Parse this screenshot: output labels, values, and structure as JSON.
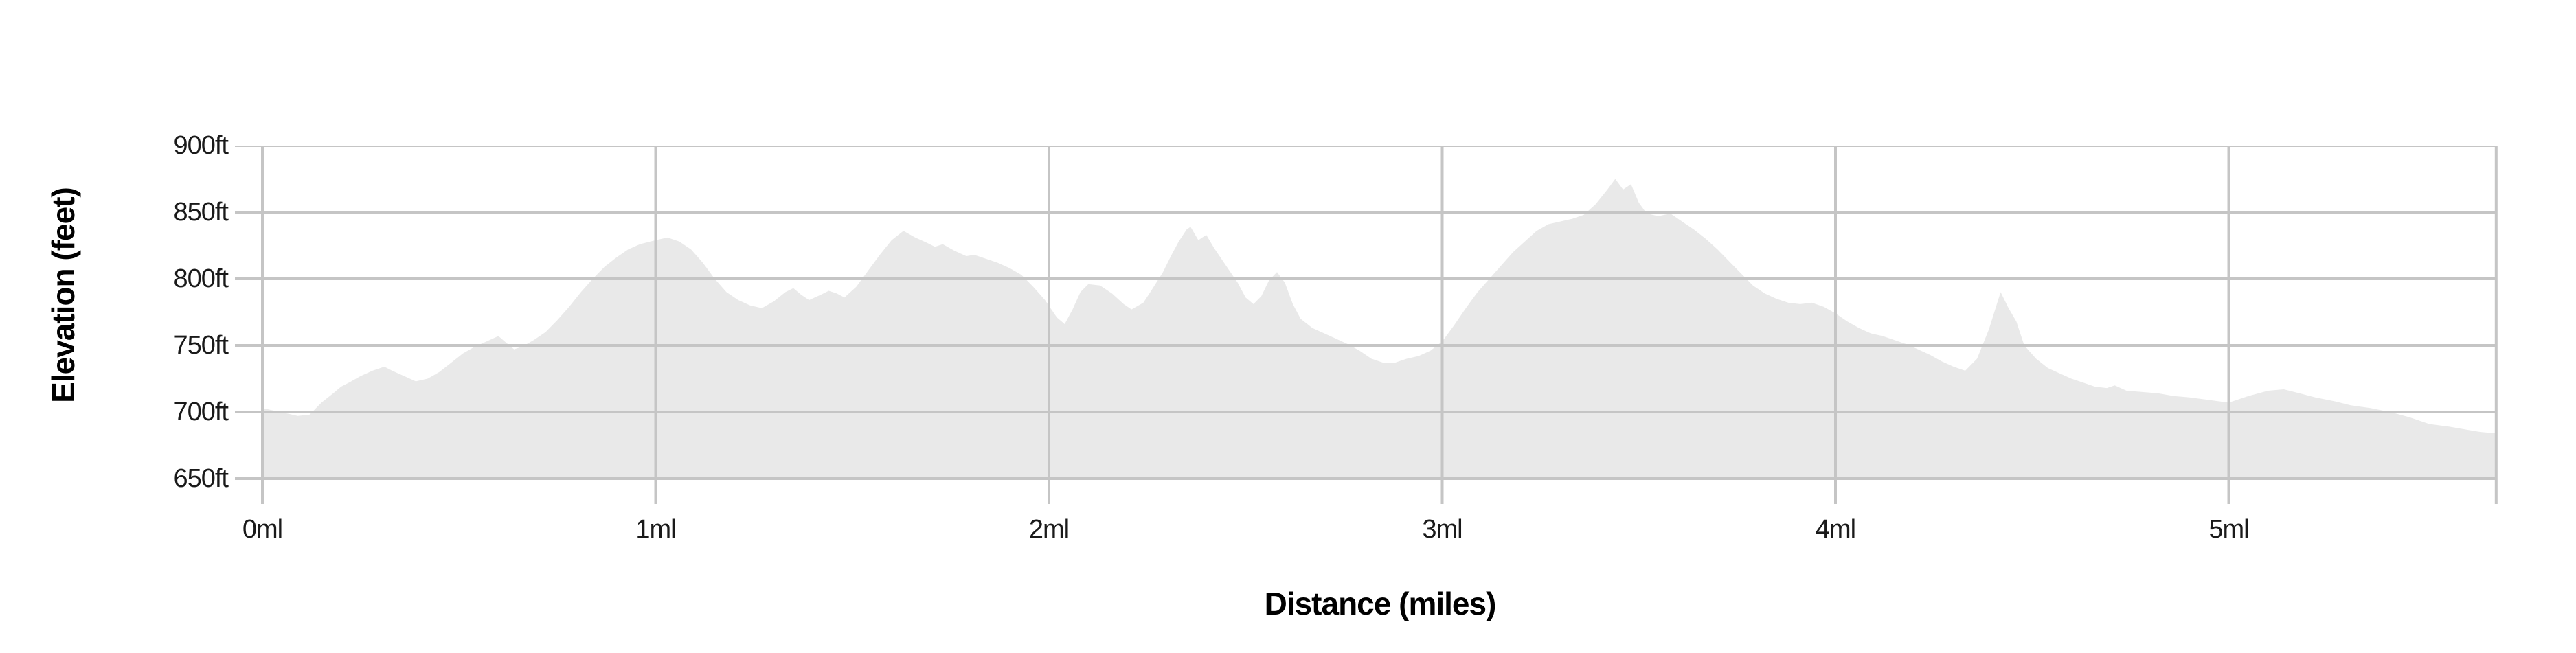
{
  "chart_data": {
    "type": "area",
    "title": "",
    "x_axis": {
      "label": "Distance (miles)",
      "max": 5.68,
      "ticks": [
        {
          "value": 0,
          "label": "0ml"
        },
        {
          "value": 1,
          "label": "1ml"
        },
        {
          "value": 2,
          "label": "2ml"
        },
        {
          "value": 3,
          "label": "3ml"
        },
        {
          "value": 4,
          "label": "4ml"
        },
        {
          "value": 5,
          "label": "5ml"
        }
      ]
    },
    "y_axis": {
      "label": "Elevation (feet)",
      "min": 650,
      "max": 900,
      "ticks": [
        {
          "value": 900,
          "label": "900ft"
        },
        {
          "value": 850,
          "label": "850ft"
        },
        {
          "value": 800,
          "label": "800ft"
        },
        {
          "value": 750,
          "label": "750ft"
        },
        {
          "value": 700,
          "label": "700ft"
        },
        {
          "value": 650,
          "label": "650ft"
        }
      ]
    },
    "colors": {
      "fill": "#e9e9e9",
      "grid": "#c5c5c5",
      "tick_text": "#1a1a1a",
      "title_text": "#000000",
      "background": "#ffffff"
    },
    "grid": true,
    "legend": "none",
    "series": [
      {
        "name": "elevation-profile",
        "points": [
          [
            0.0,
            703
          ],
          [
            0.03,
            701
          ],
          [
            0.06,
            699
          ],
          [
            0.09,
            697
          ],
          [
            0.12,
            698
          ],
          [
            0.15,
            707
          ],
          [
            0.18,
            714
          ],
          [
            0.2,
            719
          ],
          [
            0.22,
            722
          ],
          [
            0.25,
            727
          ],
          [
            0.28,
            731
          ],
          [
            0.31,
            734
          ],
          [
            0.33,
            731
          ],
          [
            0.36,
            727
          ],
          [
            0.39,
            723
          ],
          [
            0.42,
            725
          ],
          [
            0.45,
            730
          ],
          [
            0.48,
            737
          ],
          [
            0.51,
            744
          ],
          [
            0.54,
            749
          ],
          [
            0.57,
            753
          ],
          [
            0.6,
            757
          ],
          [
            0.62,
            752
          ],
          [
            0.64,
            747
          ],
          [
            0.66,
            749
          ],
          [
            0.69,
            754
          ],
          [
            0.72,
            760
          ],
          [
            0.75,
            769
          ],
          [
            0.78,
            779
          ],
          [
            0.81,
            790
          ],
          [
            0.84,
            800
          ],
          [
            0.87,
            809
          ],
          [
            0.9,
            816
          ],
          [
            0.93,
            822
          ],
          [
            0.96,
            826
          ],
          [
            1.0,
            829
          ],
          [
            1.03,
            831
          ],
          [
            1.06,
            828
          ],
          [
            1.09,
            822
          ],
          [
            1.12,
            812
          ],
          [
            1.15,
            800
          ],
          [
            1.18,
            790
          ],
          [
            1.21,
            784
          ],
          [
            1.24,
            780
          ],
          [
            1.27,
            778
          ],
          [
            1.3,
            783
          ],
          [
            1.33,
            790
          ],
          [
            1.35,
            793
          ],
          [
            1.37,
            788
          ],
          [
            1.39,
            784
          ],
          [
            1.42,
            788
          ],
          [
            1.44,
            791
          ],
          [
            1.46,
            789
          ],
          [
            1.48,
            786
          ],
          [
            1.51,
            794
          ],
          [
            1.54,
            806
          ],
          [
            1.57,
            818
          ],
          [
            1.6,
            829
          ],
          [
            1.63,
            836
          ],
          [
            1.66,
            831
          ],
          [
            1.69,
            827
          ],
          [
            1.71,
            824
          ],
          [
            1.73,
            826
          ],
          [
            1.76,
            821
          ],
          [
            1.79,
            817
          ],
          [
            1.81,
            818
          ],
          [
            1.84,
            815
          ],
          [
            1.87,
            812
          ],
          [
            1.9,
            808
          ],
          [
            1.93,
            803
          ],
          [
            1.96,
            794
          ],
          [
            1.99,
            784
          ],
          [
            2.02,
            771
          ],
          [
            2.04,
            766
          ],
          [
            2.06,
            777
          ],
          [
            2.08,
            790
          ],
          [
            2.1,
            796
          ],
          [
            2.13,
            795
          ],
          [
            2.16,
            789
          ],
          [
            2.19,
            781
          ],
          [
            2.21,
            777
          ],
          [
            2.24,
            782
          ],
          [
            2.26,
            791
          ],
          [
            2.29,
            805
          ],
          [
            2.31,
            817
          ],
          [
            2.33,
            828
          ],
          [
            2.35,
            837
          ],
          [
            2.36,
            839
          ],
          [
            2.38,
            829
          ],
          [
            2.4,
            833
          ],
          [
            2.42,
            823
          ],
          [
            2.45,
            810
          ],
          [
            2.48,
            797
          ],
          [
            2.5,
            786
          ],
          [
            2.52,
            781
          ],
          [
            2.54,
            787
          ],
          [
            2.56,
            799
          ],
          [
            2.58,
            805
          ],
          [
            2.6,
            797
          ],
          [
            2.62,
            781
          ],
          [
            2.64,
            770
          ],
          [
            2.67,
            763
          ],
          [
            2.7,
            759
          ],
          [
            2.73,
            755
          ],
          [
            2.76,
            751
          ],
          [
            2.79,
            746
          ],
          [
            2.82,
            740
          ],
          [
            2.85,
            737
          ],
          [
            2.88,
            737
          ],
          [
            2.91,
            740
          ],
          [
            2.94,
            742
          ],
          [
            2.97,
            746
          ],
          [
            3.0,
            753
          ],
          [
            3.03,
            765
          ],
          [
            3.06,
            778
          ],
          [
            3.09,
            790
          ],
          [
            3.12,
            800
          ],
          [
            3.15,
            810
          ],
          [
            3.18,
            820
          ],
          [
            3.21,
            828
          ],
          [
            3.24,
            836
          ],
          [
            3.27,
            841
          ],
          [
            3.3,
            843
          ],
          [
            3.33,
            845
          ],
          [
            3.36,
            848
          ],
          [
            3.39,
            856
          ],
          [
            3.42,
            867
          ],
          [
            3.44,
            875
          ],
          [
            3.46,
            867
          ],
          [
            3.48,
            871
          ],
          [
            3.5,
            857
          ],
          [
            3.52,
            849
          ],
          [
            3.55,
            847
          ],
          [
            3.58,
            849
          ],
          [
            3.61,
            843
          ],
          [
            3.64,
            837
          ],
          [
            3.67,
            830
          ],
          [
            3.7,
            822
          ],
          [
            3.73,
            813
          ],
          [
            3.76,
            804
          ],
          [
            3.79,
            795
          ],
          [
            3.82,
            789
          ],
          [
            3.85,
            785
          ],
          [
            3.88,
            782
          ],
          [
            3.91,
            781
          ],
          [
            3.94,
            782
          ],
          [
            3.97,
            779
          ],
          [
            4.0,
            774
          ],
          [
            4.03,
            768
          ],
          [
            4.06,
            763
          ],
          [
            4.09,
            759
          ],
          [
            4.12,
            757
          ],
          [
            4.15,
            754
          ],
          [
            4.18,
            751
          ],
          [
            4.21,
            747
          ],
          [
            4.24,
            743
          ],
          [
            4.27,
            738
          ],
          [
            4.3,
            734
          ],
          [
            4.33,
            731
          ],
          [
            4.36,
            740
          ],
          [
            4.39,
            762
          ],
          [
            4.42,
            790
          ],
          [
            4.44,
            778
          ],
          [
            4.46,
            768
          ],
          [
            4.48,
            750
          ],
          [
            4.51,
            740
          ],
          [
            4.54,
            733
          ],
          [
            4.57,
            729
          ],
          [
            4.6,
            725
          ],
          [
            4.63,
            722
          ],
          [
            4.66,
            719
          ],
          [
            4.69,
            718
          ],
          [
            4.71,
            720
          ],
          [
            4.74,
            716
          ],
          [
            4.78,
            715
          ],
          [
            4.82,
            714
          ],
          [
            4.86,
            712
          ],
          [
            4.9,
            711
          ],
          [
            4.95,
            709
          ],
          [
            5.0,
            707
          ],
          [
            5.05,
            712
          ],
          [
            5.1,
            716
          ],
          [
            5.14,
            717
          ],
          [
            5.18,
            714
          ],
          [
            5.22,
            711
          ],
          [
            5.27,
            708
          ],
          [
            5.31,
            705
          ],
          [
            5.36,
            703
          ],
          [
            5.41,
            700
          ],
          [
            5.46,
            696
          ],
          [
            5.51,
            691
          ],
          [
            5.56,
            689
          ],
          [
            5.6,
            687
          ],
          [
            5.64,
            685
          ],
          [
            5.68,
            684
          ]
        ]
      }
    ]
  }
}
